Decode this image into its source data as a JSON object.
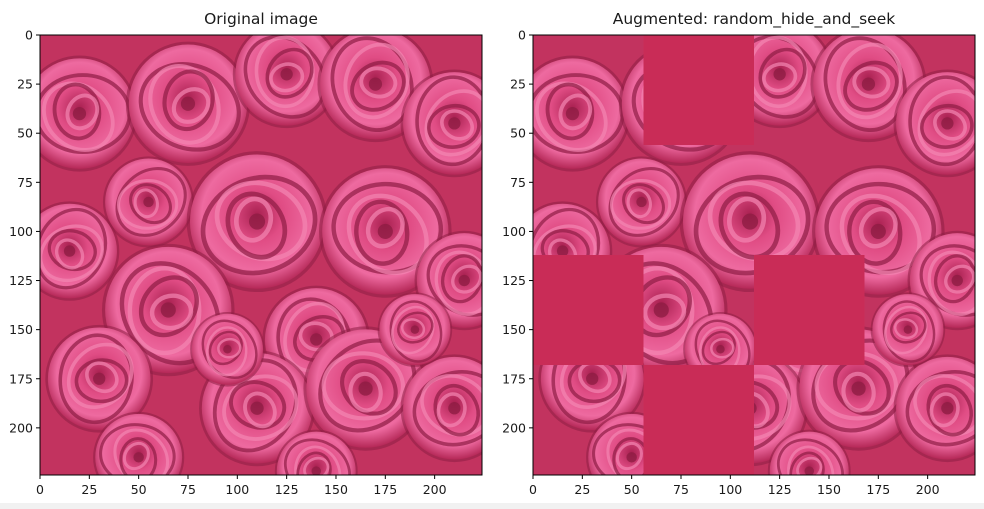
{
  "chart_data": [
    {
      "type": "image",
      "title": "Original image",
      "xlim": [
        0,
        224
      ],
      "ylim": [
        224,
        0
      ],
      "xticks": [
        0,
        25,
        50,
        75,
        100,
        125,
        150,
        175,
        200
      ],
      "yticks": [
        0,
        25,
        50,
        75,
        100,
        125,
        150,
        175,
        200
      ],
      "masked_patches": []
    },
    {
      "type": "image",
      "title": "Augmented: random_hide_and_seek",
      "xlim": [
        0,
        224
      ],
      "ylim": [
        224,
        0
      ],
      "xticks": [
        0,
        25,
        50,
        75,
        100,
        125,
        150,
        175,
        200
      ],
      "yticks": [
        0,
        25,
        50,
        75,
        100,
        125,
        150,
        175,
        200
      ],
      "grid_size": 56,
      "mask_color": "#c92c57",
      "masked_patches": [
        {
          "x0": 56,
          "y0": 0,
          "x1": 112,
          "y1": 56
        },
        {
          "x0": 0,
          "y0": 112,
          "x1": 56,
          "y1": 168
        },
        {
          "x0": 112,
          "y0": 112,
          "x1": 168,
          "y1": 168
        },
        {
          "x0": 56,
          "y0": 168,
          "x1": 112,
          "y1": 224
        }
      ]
    }
  ],
  "image": {
    "background_color": "#c2335f",
    "petal_color": "#e05286",
    "highlight_color": "#f486b2",
    "shadow_color": "#8e1d44"
  }
}
